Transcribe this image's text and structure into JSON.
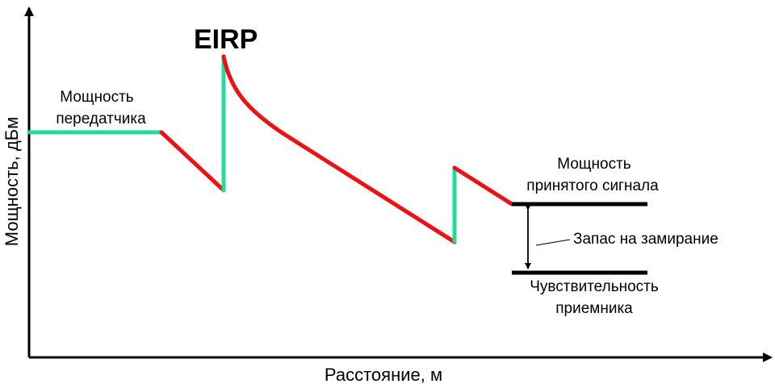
{
  "labels": {
    "eirp": "EIRP",
    "tx_power_line1": "Мощность",
    "tx_power_line2": "передатчика",
    "rx_power_line1": "Мощность",
    "rx_power_line2": "принятого   сигнала",
    "fade_margin": "Запас на замирание",
    "sensitivity_line1": "Чувствительность",
    "sensitivity_line2": "приемника"
  },
  "axes": {
    "x_label": "Расстояние,   м",
    "y_label": "Мощность,   дБм"
  },
  "colors": {
    "gain": "#22dd99",
    "loss": "#ee1111",
    "level": "#000000"
  }
}
